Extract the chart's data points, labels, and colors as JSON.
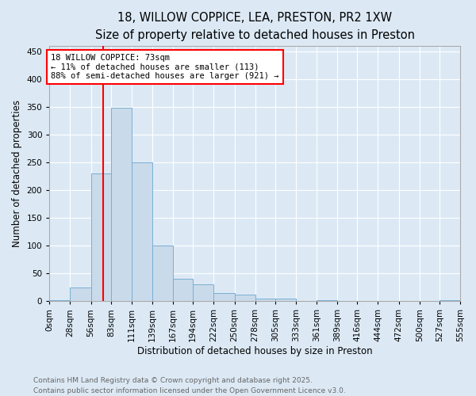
{
  "title1": "18, WILLOW COPPICE, LEA, PRESTON, PR2 1XW",
  "title2": "Size of property relative to detached houses in Preston",
  "xlabel": "Distribution of detached houses by size in Preston",
  "ylabel": "Number of detached properties",
  "bar_color": "#c9daea",
  "bar_edge_color": "#7aafd4",
  "background_color": "#dce9f5",
  "fig_background": "#dce9f5",
  "grid_color": "#ffffff",
  "vline_x": 73,
  "vline_color": "red",
  "annotation_text": "18 WILLOW COPPICE: 73sqm\n← 11% of detached houses are smaller (113)\n88% of semi-detached houses are larger (921) →",
  "bins": [
    0,
    28,
    56,
    83,
    111,
    139,
    167,
    194,
    222,
    250,
    278,
    305,
    333,
    361,
    389,
    416,
    444,
    472,
    500,
    527,
    555
  ],
  "counts": [
    2,
    25,
    230,
    348,
    250,
    100,
    40,
    30,
    14,
    12,
    4,
    5,
    0,
    2,
    0,
    0,
    0,
    0,
    0,
    2
  ],
  "ylim": [
    0,
    460
  ],
  "yticks": [
    0,
    50,
    100,
    150,
    200,
    250,
    300,
    350,
    400,
    450
  ],
  "footnote": "Contains HM Land Registry data © Crown copyright and database right 2025.\nContains public sector information licensed under the Open Government Licence v3.0.",
  "title_fontsize": 10.5,
  "subtitle_fontsize": 9.5,
  "label_fontsize": 8.5,
  "tick_fontsize": 7.5,
  "footnote_fontsize": 6.5,
  "annotation_fontsize": 7.5
}
